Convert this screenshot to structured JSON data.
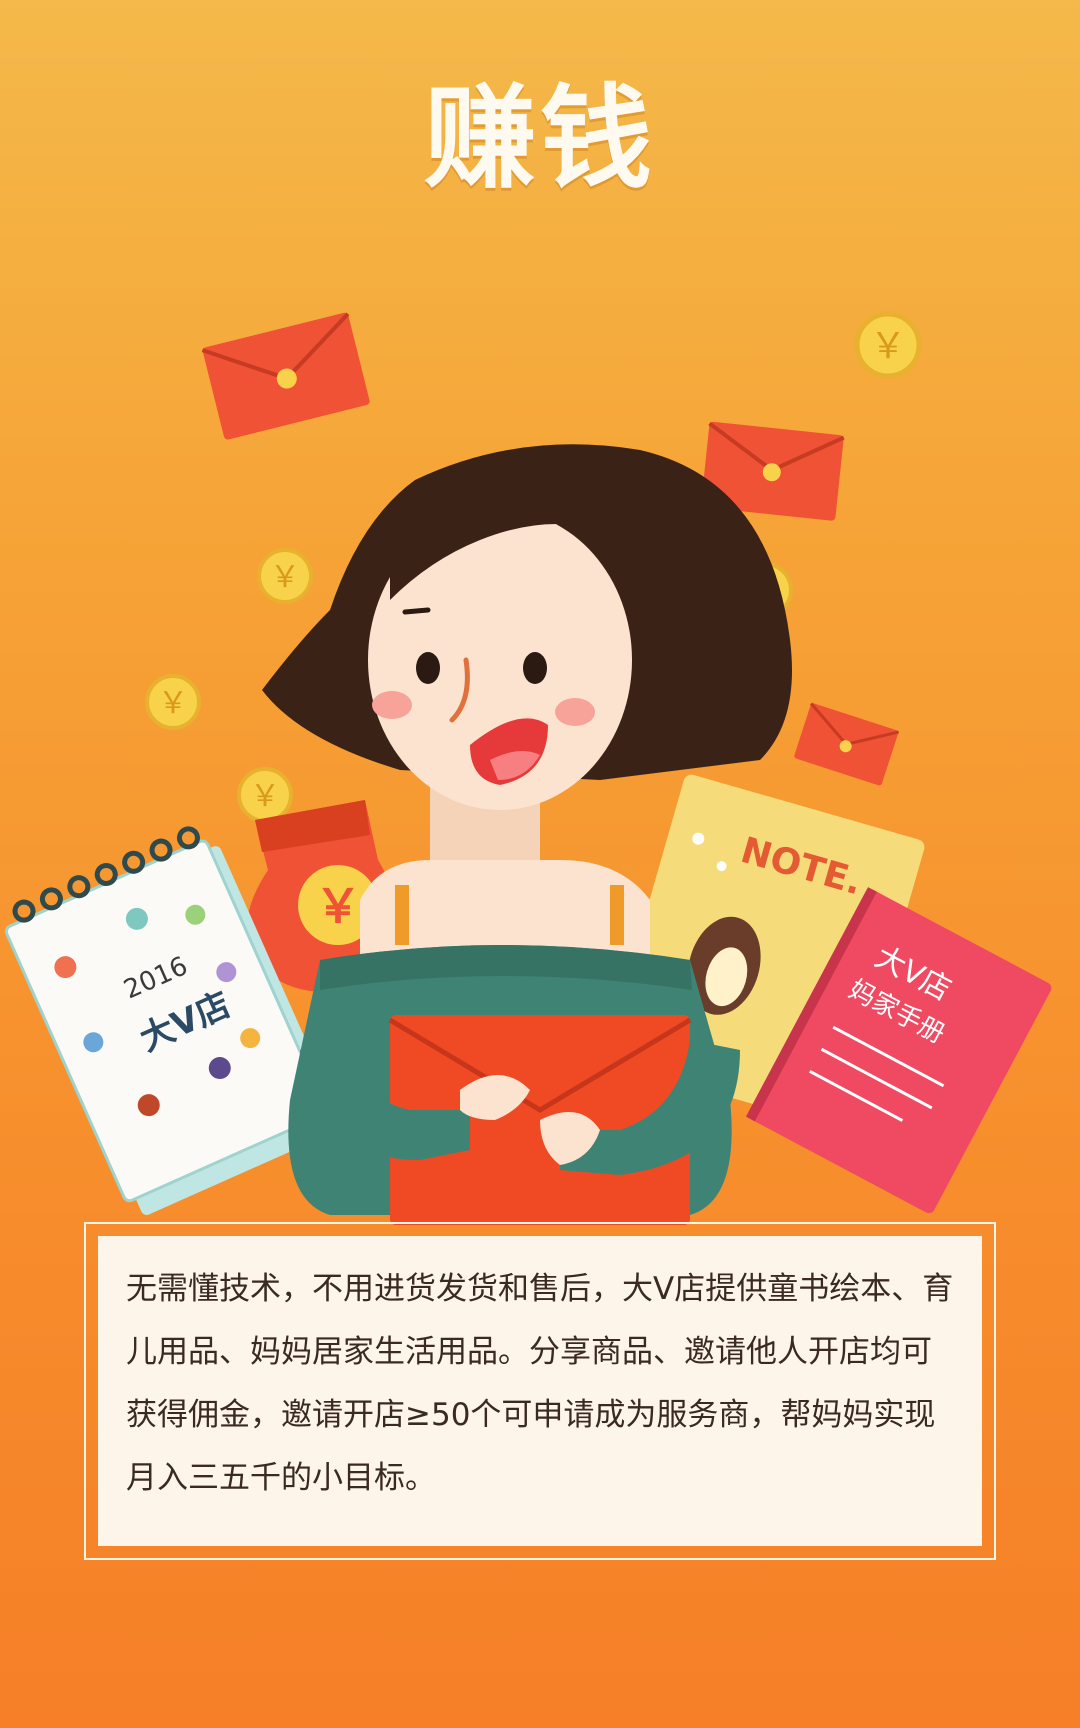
{
  "title": "赚钱",
  "illustration": {
    "calendar_year": "2016",
    "calendar_text": "大V店",
    "note_label": "NOTE.",
    "handbook_line1": "大V店",
    "handbook_line2": "妈家手册",
    "coin_symbol": "￥",
    "colors": {
      "envelope": "#ef5234",
      "coin": "#f8d24a",
      "hair": "#3b2217",
      "sweater": "#3f8374",
      "skin": "#fbe3cf"
    }
  },
  "description": "无需懂技术，不用进货发货和售后，大V店提供童书绘本、育儿用品、妈妈居家生活用品。分享商品、邀请他人开店均可获得佣金，邀请开店≥50个可申请成为服务商，帮妈妈实现月入三五千的小目标。"
}
